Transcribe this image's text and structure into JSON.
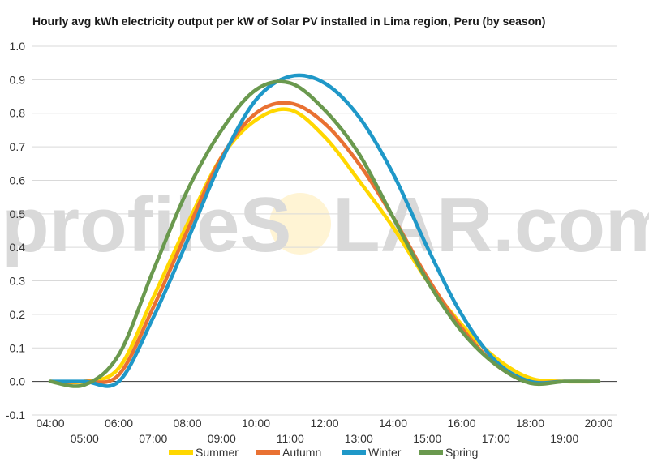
{
  "watermark": {
    "left_text": "profileS",
    "right_text": "LAR.com"
  },
  "chart_data": {
    "type": "line",
    "title": "Hourly avg kWh electricity output per kW of Solar PV installed in Lima region, Peru (by season)",
    "xlabel": "",
    "ylabel": "",
    "ylim": [
      -0.1,
      1.0
    ],
    "yticks": [
      "-0.1",
      "0.0",
      "0.1",
      "0.2",
      "0.3",
      "0.4",
      "0.5",
      "0.6",
      "0.7",
      "0.8",
      "0.9",
      "1.0"
    ],
    "grid": true,
    "legend_position": "bottom",
    "categories": [
      "04:00",
      "05:00",
      "06:00",
      "07:00",
      "08:00",
      "09:00",
      "10:00",
      "11:00",
      "12:00",
      "13:00",
      "14:00",
      "15:00",
      "16:00",
      "17:00",
      "18:00",
      "19:00",
      "20:00"
    ],
    "series": [
      {
        "name": "Summer",
        "color": "#FFD700",
        "values": [
          0.0,
          0.0,
          0.04,
          0.25,
          0.47,
          0.67,
          0.78,
          0.81,
          0.73,
          0.6,
          0.46,
          0.3,
          0.17,
          0.07,
          0.01,
          0.0,
          0.0
        ]
      },
      {
        "name": "Autumn",
        "color": "#E97132",
        "values": [
          0.0,
          0.0,
          0.02,
          0.22,
          0.45,
          0.67,
          0.8,
          0.83,
          0.77,
          0.65,
          0.49,
          0.31,
          0.16,
          0.05,
          0.0,
          0.0,
          0.0
        ]
      },
      {
        "name": "Winter",
        "color": "#1F98C8",
        "values": [
          0.0,
          0.0,
          0.0,
          0.19,
          0.42,
          0.66,
          0.84,
          0.91,
          0.89,
          0.79,
          0.62,
          0.4,
          0.2,
          0.06,
          0.0,
          0.0,
          0.0
        ]
      },
      {
        "name": "Spring",
        "color": "#6A994E",
        "values": [
          0.0,
          -0.01,
          0.08,
          0.33,
          0.57,
          0.75,
          0.87,
          0.89,
          0.81,
          0.68,
          0.49,
          0.3,
          0.15,
          0.05,
          -0.005,
          0.0,
          0.0
        ]
      }
    ]
  }
}
